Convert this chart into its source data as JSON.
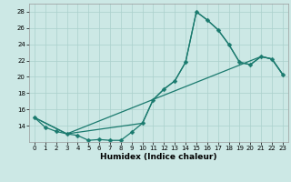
{
  "title": "",
  "xlabel": "Humidex (Indice chaleur)",
  "xlim": [
    -0.5,
    23.5
  ],
  "ylim": [
    12,
    29
  ],
  "yticks": [
    14,
    16,
    18,
    20,
    22,
    24,
    26,
    28
  ],
  "xticks": [
    0,
    1,
    2,
    3,
    4,
    5,
    6,
    7,
    8,
    9,
    10,
    11,
    12,
    13,
    14,
    15,
    16,
    17,
    18,
    19,
    20,
    21,
    22,
    23
  ],
  "bg_color": "#cce8e5",
  "grid_color": "#aad0cc",
  "line_color": "#1a7a6e",
  "line1_x": [
    0,
    1,
    2,
    3,
    4,
    5,
    6,
    7,
    8,
    9,
    10,
    11,
    12,
    13,
    14,
    15,
    16,
    17,
    18,
    19,
    20,
    21,
    22,
    23
  ],
  "line1_y": [
    15.0,
    13.8,
    13.3,
    13.0,
    12.8,
    12.2,
    12.3,
    12.2,
    12.2,
    13.2,
    14.3,
    17.2,
    18.5,
    19.5,
    21.8,
    28.0,
    27.0,
    25.8,
    24.0,
    21.8,
    21.5,
    22.5,
    22.2,
    20.3
  ],
  "line2_x": [
    0,
    3,
    21,
    22,
    23
  ],
  "line2_y": [
    15.0,
    13.0,
    22.5,
    22.2,
    20.3
  ],
  "line3_x": [
    0,
    3,
    10,
    11,
    12,
    13,
    14,
    15,
    16,
    17,
    18,
    19,
    20,
    21,
    22,
    23
  ],
  "line3_y": [
    15.0,
    13.0,
    14.3,
    17.2,
    18.5,
    19.5,
    21.8,
    28.0,
    27.0,
    25.8,
    24.0,
    21.8,
    21.5,
    22.5,
    22.2,
    20.3
  ],
  "tick_fontsize": 5.0,
  "xlabel_fontsize": 6.5,
  "marker_size": 2.5,
  "linewidth": 0.9
}
